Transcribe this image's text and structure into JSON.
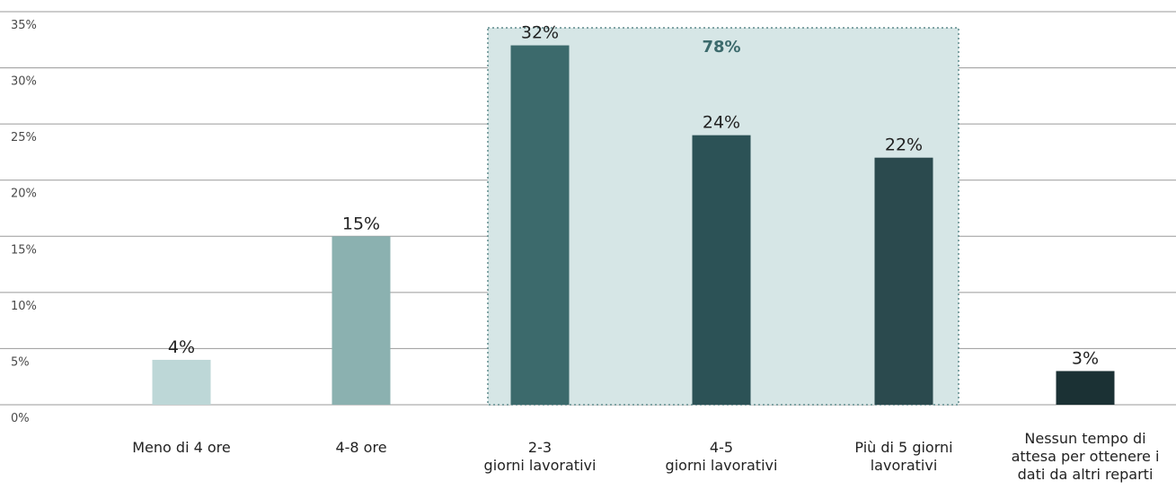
{
  "chart_data": {
    "type": "bar",
    "categories": [
      [
        "Meno di 4 ore"
      ],
      [
        "4-8 ore"
      ],
      [
        "2-3",
        "giorni lavorativi"
      ],
      [
        "4-5",
        "giorni lavorativi"
      ],
      [
        "Più di 5 giorni",
        "lavorativi"
      ],
      [
        "Nessun tempo di",
        "attesa per ottenere i",
        "dati da altri reparti"
      ]
    ],
    "values": [
      4,
      15,
      32,
      24,
      22,
      3
    ],
    "value_labels": [
      "4%",
      "15%",
      "32%",
      "24%",
      "22%",
      "3%"
    ],
    "bar_colors": [
      "#bdd7d7",
      "#8bb1b0",
      "#3c6a6c",
      "#2c5256",
      "#2b4a4e",
      "#1b3134"
    ],
    "ylim": [
      0,
      35
    ],
    "yticks": [
      "0%",
      "5%",
      "10%",
      "15%",
      "20%",
      "25%",
      "30%",
      "35%"
    ],
    "grid": true,
    "highlight": {
      "label": "78%",
      "label_color": "#3c6a6c",
      "fill_color": "#d6e6e6",
      "categories_covered": [
        2,
        3,
        4
      ]
    }
  }
}
